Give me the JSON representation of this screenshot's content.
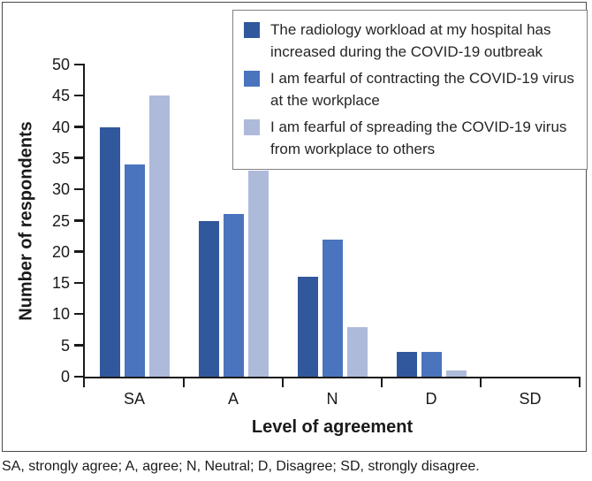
{
  "figure": {
    "footnote": "SA, strongly agree; A, agree; N, Neutral; D, Disagree; SD, strongly disagree."
  },
  "chart_data": {
    "type": "bar",
    "title": "",
    "categories": [
      "SA",
      "A",
      "N",
      "D",
      "SD"
    ],
    "series": [
      {
        "name": "The radiology workload at my hospital has increased during the COVID-19 outbreak",
        "lines": [
          "The radiology workload at my hospital has",
          "increased during the COVID-19 outbreak"
        ],
        "color": "#31589c",
        "values": [
          40,
          25,
          16,
          4,
          0
        ]
      },
      {
        "name": "I am fearful of contracting the COVID-19 virus at the workplace",
        "lines": [
          "I am fearful of contracting the COVID-19 virus",
          "at the workplace"
        ],
        "color": "#4a74bd",
        "values": [
          34,
          26,
          22,
          4,
          0
        ]
      },
      {
        "name": "I am fearful of spreading the COVID-19 virus from workplace to others",
        "lines": [
          "I am fearful of spreading the COVID-19 virus",
          "from workplace to others"
        ],
        "color": "#aebada",
        "values": [
          45,
          33,
          8,
          1,
          0
        ]
      }
    ],
    "xlabel": "Level of agreement",
    "ylabel": "Number of respondents",
    "ylim": [
      0,
      50
    ],
    "ytick_step": 5,
    "yticks": [
      0,
      5,
      10,
      15,
      20,
      25,
      30,
      35,
      40,
      45,
      50
    ],
    "legend_position": "top-right",
    "grid": false,
    "axis_color": "#1a1a1a",
    "box_border_color": "#4a4a4a",
    "legend_border_color": "#808080"
  }
}
